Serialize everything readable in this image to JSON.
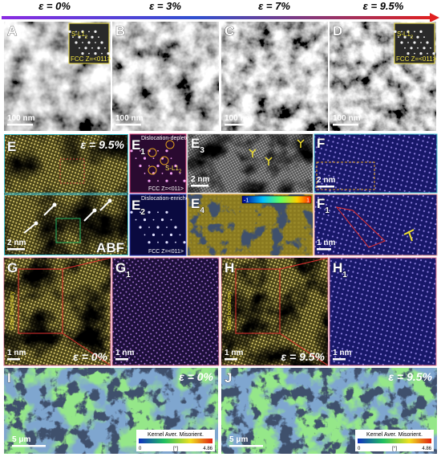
{
  "header": {
    "strains": [
      "ε = 0%",
      "ε = 3%",
      "ε = 7%",
      "ε = 9.5%"
    ]
  },
  "row1": [
    {
      "label": "A",
      "scale_bar": "100 nm",
      "inset": {
        "phase": "S-L1",
        "phase_sub": "2",
        "zone": "FCC Z=<011>"
      }
    },
    {
      "label": "B",
      "scale_bar": "100 nm"
    },
    {
      "label": "C",
      "scale_bar": "100 nm"
    },
    {
      "label": "D",
      "scale_bar": "100 nm",
      "inset": {
        "phase": "S-L1",
        "phase_sub": "2",
        "zone": "FCC Z=<011>"
      }
    }
  ],
  "row2": {
    "E": {
      "label": "E",
      "strain": "ε = 9.5%",
      "scale_bar": "2 nm",
      "mode": "ABF"
    },
    "E1": {
      "label": "E",
      "sub": "1",
      "title": "Dislocation-depleted",
      "phase": "S-L1",
      "phase_sub": "2",
      "zone": "FCC Z=<011>"
    },
    "E2": {
      "label": "E",
      "sub": "2",
      "title": "Dislocation-enriched",
      "zone": "FCC Z=<011>"
    },
    "E3": {
      "label": "E",
      "sub": "3",
      "scale_bar": "2 nm"
    },
    "E4": {
      "label": "E",
      "sub": "4",
      "colorbar_min": -1,
      "colorbar_max": 1
    },
    "F": {
      "label": "F",
      "scale_bar": "2 nm"
    },
    "F1": {
      "label": "F",
      "sub": "1",
      "scale_bar": "1 nm"
    }
  },
  "row3": [
    {
      "label": "G",
      "side_label": "Grain boundary",
      "scale_bar": "1 nm",
      "strain": "ε = 0%"
    },
    {
      "label": "G",
      "sub": "1",
      "scale_bar": "1 nm"
    },
    {
      "label": "H",
      "side_label": "Grain boundary",
      "scale_bar": "1 nm",
      "strain": "ε = 9.5%"
    },
    {
      "label": "H",
      "sub": "1",
      "scale_bar": "1 nm"
    }
  ],
  "row4": [
    {
      "label": "I",
      "strain": "ε = 0%",
      "scale_bar": "5 μm",
      "colorbar": {
        "title": "Kernel Aver. Misorient.",
        "min": 0,
        "unit": "[°]",
        "max": 4.86
      }
    },
    {
      "label": "J",
      "strain": "ε = 9.5%",
      "scale_bar": "5 μm",
      "colorbar": {
        "title": "Kernel Aver. Misorient.",
        "min": 0,
        "unit": "[°]",
        "max": 4.86
      }
    }
  ]
}
